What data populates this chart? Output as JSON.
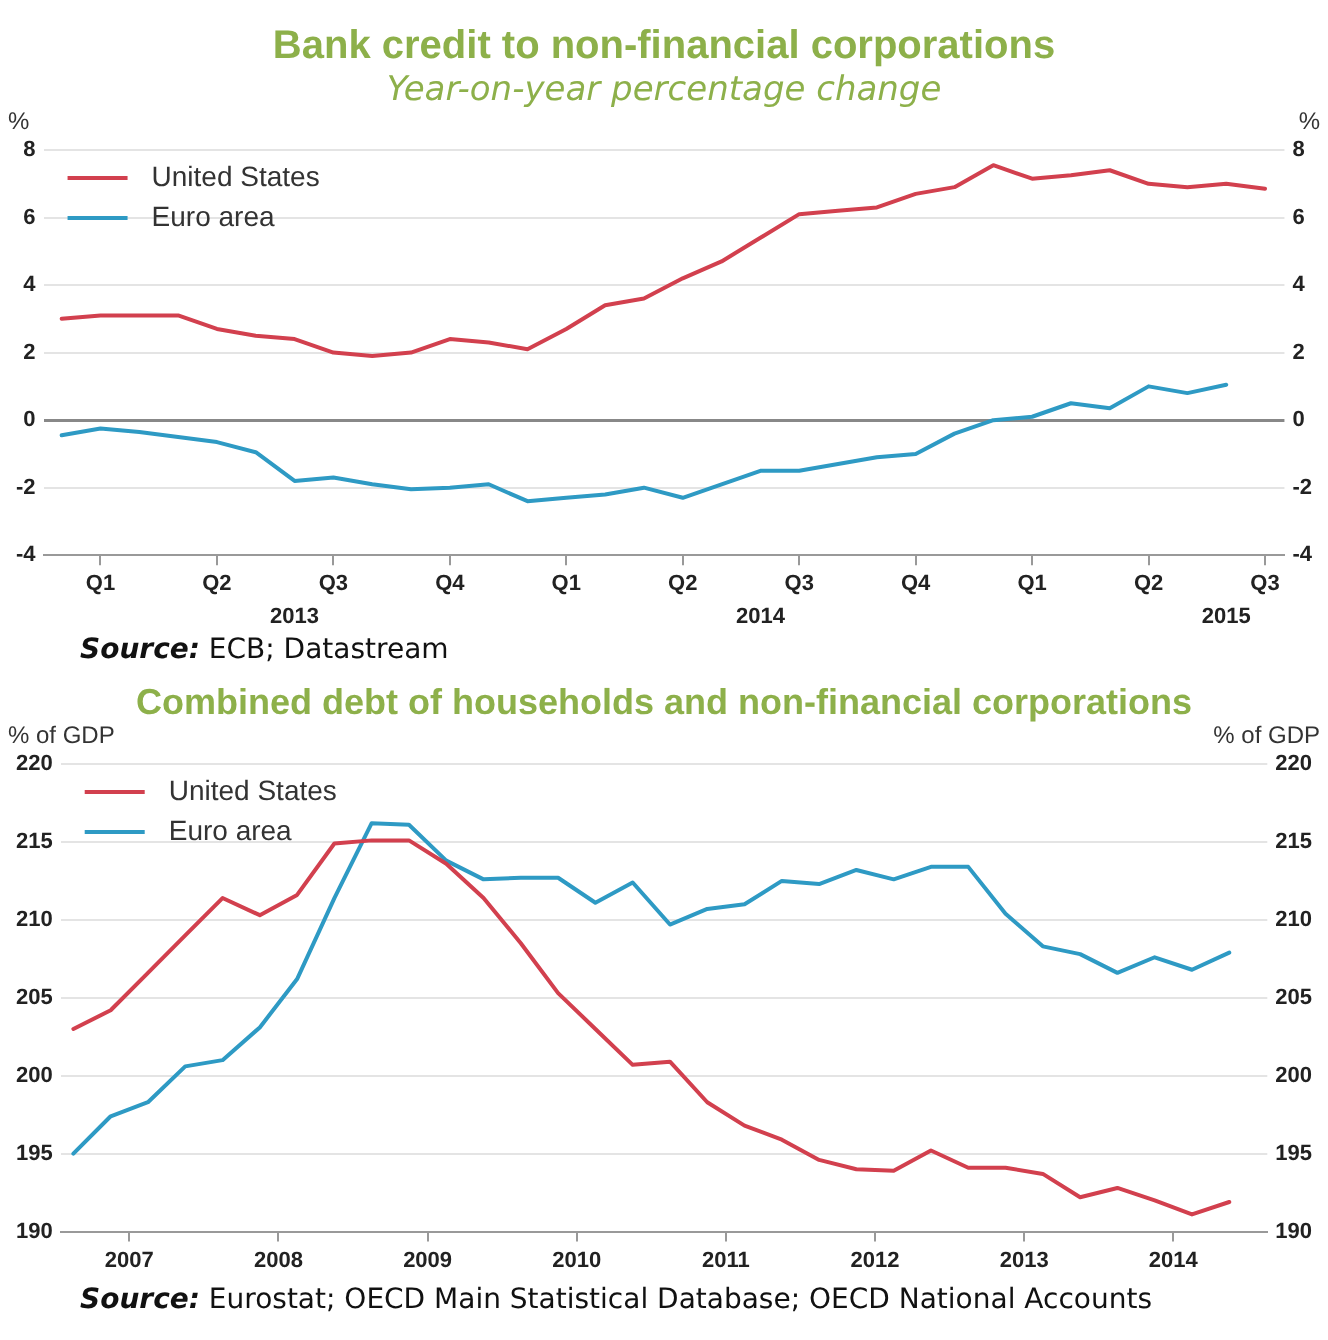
{
  "chart_data": [
    {
      "type": "line",
      "title": "Bank credit to non-financial corporations",
      "subtitle": "Year-on-year percentage change",
      "ylabel": "%",
      "y2label": "%",
      "x": [
        "2013-01",
        "2013-02",
        "2013-03",
        "2013-04",
        "2013-05",
        "2013-06",
        "2013-07",
        "2013-08",
        "2013-09",
        "2013-10",
        "2013-11",
        "2013-12",
        "2014-01",
        "2014-02",
        "2014-03",
        "2014-04",
        "2014-05",
        "2014-06",
        "2014-07",
        "2014-08",
        "2014-09",
        "2014-10",
        "2014-11",
        "2014-12",
        "2015-01",
        "2015-02",
        "2015-03",
        "2015-04",
        "2015-05",
        "2015-06",
        "2015-07",
        "2015-08"
      ],
      "series": [
        {
          "name": "United States",
          "color": "#d2404e",
          "values": [
            3.0,
            3.1,
            3.1,
            3.1,
            2.7,
            2.5,
            2.4,
            2.0,
            1.9,
            2.0,
            2.4,
            2.3,
            2.1,
            2.7,
            3.4,
            3.6,
            4.2,
            4.7,
            5.4,
            6.1,
            6.2,
            6.3,
            6.7,
            6.9,
            7.55,
            7.15,
            7.25,
            7.4,
            7.0,
            6.9,
            7.0,
            6.85
          ]
        },
        {
          "name": "Euro area",
          "color": "#2e9ac4",
          "values": [
            -0.45,
            -0.25,
            -0.35,
            -0.5,
            -0.65,
            -0.95,
            -1.8,
            -1.7,
            -1.9,
            -2.05,
            -2.0,
            -1.9,
            -2.4,
            -2.3,
            -2.2,
            -2.0,
            -2.3,
            -1.9,
            -1.5,
            -1.5,
            -1.3,
            -1.1,
            -1.0,
            -0.4,
            0.0,
            0.1,
            0.5,
            0.35,
            1.0,
            0.8,
            1.05,
            null
          ]
        }
      ],
      "xlim": [
        "2012-12-17",
        "2015-08-16"
      ],
      "xticks": [
        {
          "value": "2013-02",
          "label": "Q1"
        },
        {
          "value": "2013-05",
          "label": "Q2"
        },
        {
          "value": "2013-08",
          "label": "Q3"
        },
        {
          "value": "2013-11",
          "label": "Q4"
        },
        {
          "value": "2014-02",
          "label": "Q1"
        },
        {
          "value": "2014-05",
          "label": "Q2"
        },
        {
          "value": "2014-08",
          "label": "Q3"
        },
        {
          "value": "2014-11",
          "label": "Q4"
        },
        {
          "value": "2015-02",
          "label": "Q1"
        },
        {
          "value": "2015-05",
          "label": "Q2"
        },
        {
          "value": "2015-08",
          "label": "Q3"
        }
      ],
      "x2lim": [
        "2012-12-17",
        "2015-08-16"
      ],
      "x2ticks": [
        {
          "value": "2013-07",
          "label": "2013"
        },
        {
          "value": "2014-07",
          "label": "2014"
        },
        {
          "value": "2015-07",
          "label": "2015"
        }
      ],
      "ylim": [
        -4,
        8
      ],
      "yticks": [
        -4,
        -2,
        0,
        2,
        4,
        6,
        8
      ],
      "y2lim": [
        -4,
        8
      ],
      "y2ticks": [
        -4,
        -2,
        0,
        2,
        4,
        6,
        8
      ],
      "grid": "y",
      "legend": "top left",
      "marker": "none",
      "line_style": "solid",
      "annotations": [
        "Source: ECB; Datastream"
      ]
    },
    {
      "type": "line",
      "title": "Combined debt of households and non-financial corporations",
      "ylabel": "% of GDP",
      "y2label": "% of GDP",
      "x": [
        2007.125,
        2007.375,
        2007.625,
        2007.875,
        2008.125,
        2008.375,
        2008.625,
        2008.875,
        2009.125,
        2009.375,
        2009.625,
        2009.875,
        2010.125,
        2010.375,
        2010.625,
        2010.875,
        2011.125,
        2011.375,
        2011.625,
        2011.875,
        2012.125,
        2012.375,
        2012.625,
        2012.875,
        2013.125,
        2013.375,
        2013.625,
        2013.875,
        2014.125,
        2014.375,
        2014.625,
        2014.875
      ],
      "series": [
        {
          "name": "United States",
          "color": "#d2404e",
          "values": [
            203.0,
            204.2,
            206.6,
            209.0,
            211.4,
            210.3,
            211.6,
            214.9,
            215.1,
            215.1,
            213.6,
            211.4,
            208.5,
            205.3,
            203.0,
            200.7,
            200.9,
            198.3,
            196.8,
            195.9,
            194.6,
            194.0,
            193.9,
            195.2,
            194.1,
            194.1,
            193.7,
            192.2,
            192.8,
            192.0,
            191.1,
            191.9
          ]
        },
        {
          "name": "Euro area",
          "color": "#2e9ac4",
          "values": [
            195.0,
            197.4,
            198.3,
            200.6,
            201.0,
            203.1,
            206.2,
            211.4,
            216.2,
            216.1,
            213.8,
            212.6,
            212.7,
            212.7,
            211.1,
            212.4,
            209.7,
            210.7,
            211.0,
            212.5,
            212.3,
            213.2,
            212.6,
            213.4,
            213.4,
            210.4,
            208.3,
            207.8,
            206.6,
            207.6,
            206.8,
            207.9
          ]
        }
      ],
      "xlim": [
        2007.04,
        2015.13
      ],
      "xticks": [
        {
          "value": 2007.5,
          "label": "2007"
        },
        {
          "value": 2008.5,
          "label": "2008"
        },
        {
          "value": 2009.5,
          "label": "2009"
        },
        {
          "value": 2010.5,
          "label": "2010"
        },
        {
          "value": 2011.5,
          "label": "2011"
        },
        {
          "value": 2012.5,
          "label": "2012"
        },
        {
          "value": 2013.5,
          "label": "2013"
        },
        {
          "value": 2014.5,
          "label": "2014"
        }
      ],
      "ylim": [
        190,
        220
      ],
      "yticks": [
        190,
        195,
        200,
        205,
        210,
        215,
        220
      ],
      "y2lim": [
        190,
        220
      ],
      "y2ticks": [
        190,
        195,
        200,
        205,
        210,
        215,
        220
      ],
      "grid": "y",
      "legend": "top left",
      "marker": "none",
      "line_style": "solid",
      "annotations": [
        "Source: Eurostat; OECD Main Statistical Database; OECD National Accounts"
      ]
    }
  ]
}
